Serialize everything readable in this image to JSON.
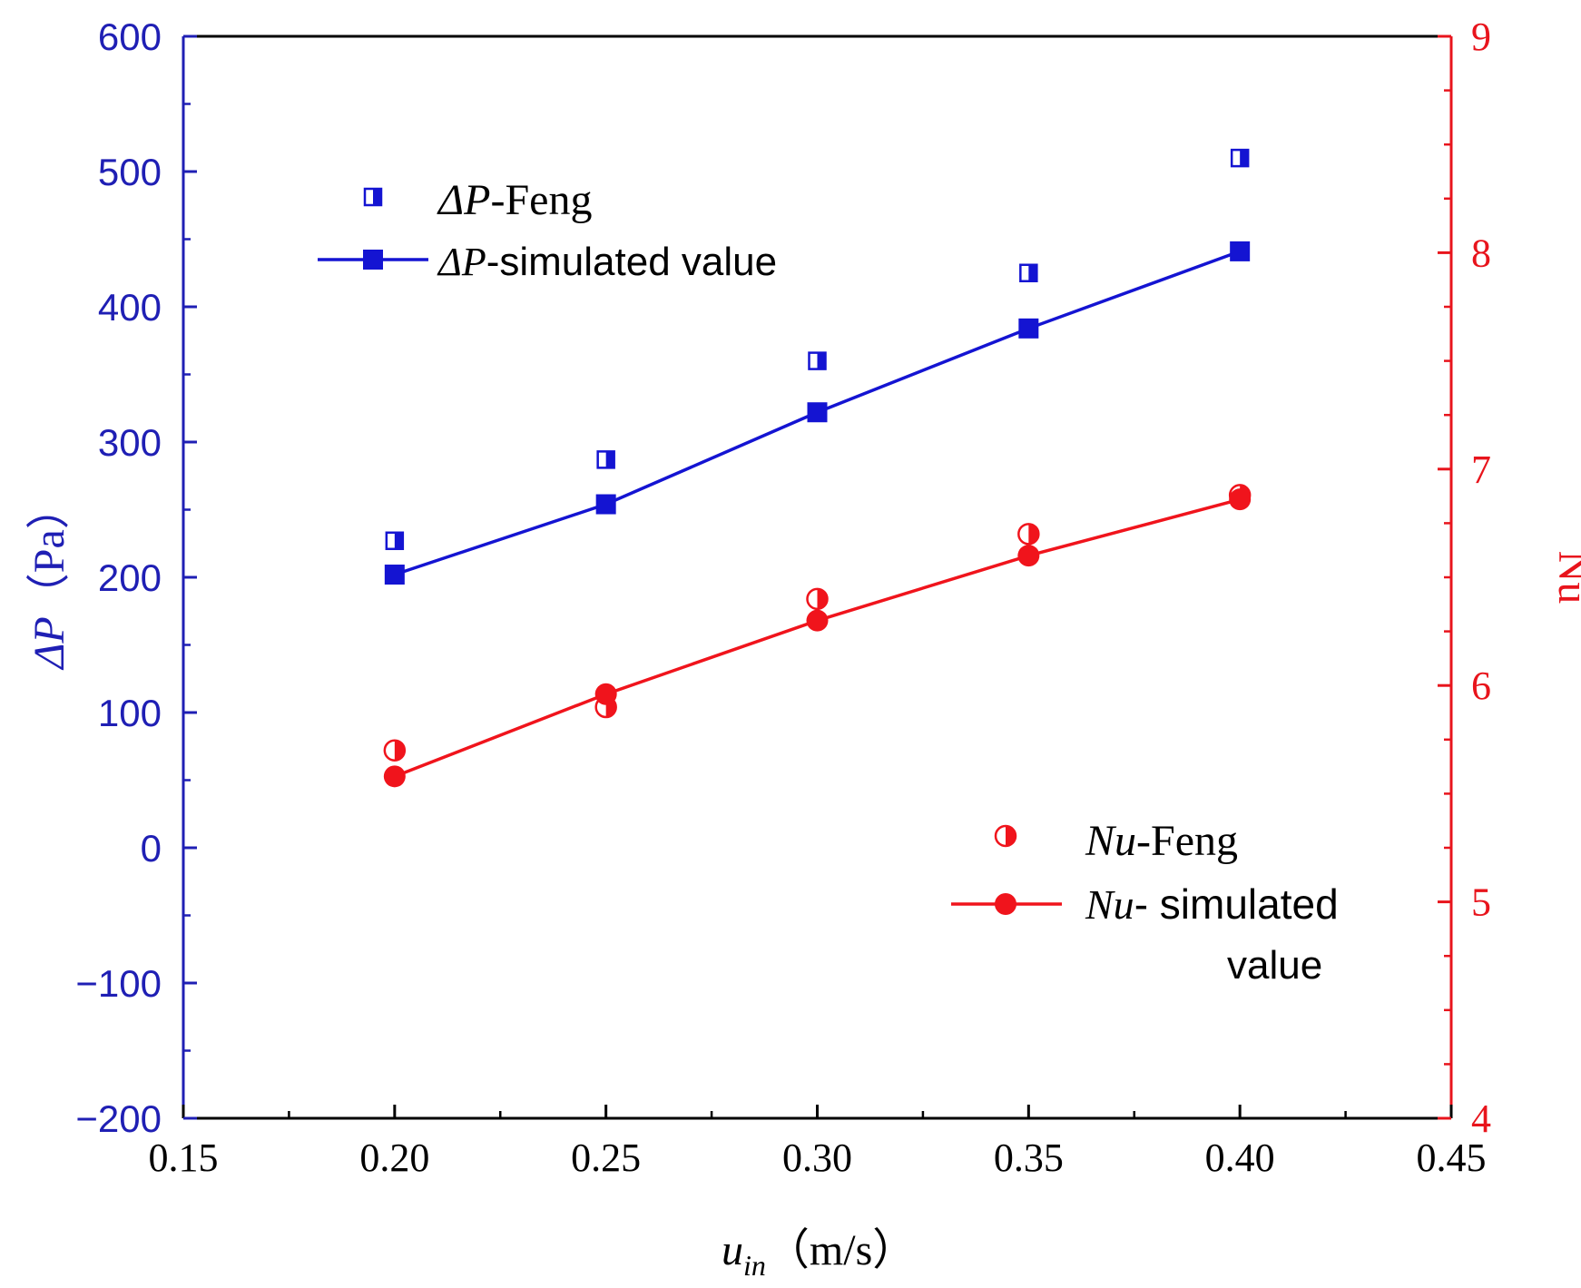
{
  "chart_data": {
    "type": "line",
    "x": [
      0.2,
      0.25,
      0.3,
      0.35,
      0.4
    ],
    "xlim": [
      0.15,
      0.45
    ],
    "xticks": [
      "0.15",
      "0.20",
      "0.25",
      "0.30",
      "0.35",
      "0.40",
      "0.45"
    ],
    "xtick_values": [
      0.15,
      0.2,
      0.25,
      0.3,
      0.35,
      0.4,
      0.45
    ],
    "xlabel": {
      "main": "u",
      "sub": "in",
      "unit": "（m/s）"
    },
    "y_left": {
      "label": {
        "symbol": "ΔP",
        "unit": "（Pa）"
      },
      "lim": [
        -200,
        600
      ],
      "ticks": [
        "−200",
        "−100",
        "0",
        "100",
        "200",
        "300",
        "400",
        "500",
        "600"
      ],
      "tick_values": [
        -200,
        -100,
        0,
        100,
        200,
        300,
        400,
        500,
        600
      ],
      "color": "#1f1fb4"
    },
    "y_right": {
      "label": "Nu",
      "lim": [
        4,
        9
      ],
      "ticks": [
        "4",
        "5",
        "6",
        "7",
        "8",
        "9"
      ],
      "tick_values": [
        4,
        5,
        6,
        7,
        8,
        9
      ],
      "color": "#e8141c"
    },
    "series": [
      {
        "name": "ΔP-Feng",
        "axis": "left",
        "marker": "half-square",
        "line": false,
        "color": "#1414d2",
        "values": [
          227,
          287,
          360,
          425,
          510
        ]
      },
      {
        "name": "ΔP-simulated value",
        "axis": "left",
        "marker": "square",
        "line": true,
        "color": "#1414d2",
        "values": [
          202,
          254,
          322,
          384,
          441
        ]
      },
      {
        "name": "Nu-Feng",
        "axis": "right",
        "marker": "half-circle",
        "line": false,
        "color": "#f0141c",
        "values": [
          5.7,
          5.9,
          6.4,
          6.7,
          6.88
        ]
      },
      {
        "name": "Nu-simulated value",
        "axis": "right",
        "marker": "circle",
        "line": true,
        "color": "#f0141c",
        "values": [
          5.58,
          5.96,
          6.3,
          6.6,
          6.86
        ]
      }
    ],
    "legend": {
      "upper_left": [
        {
          "symbol": "ΔP",
          "rest": "-Feng"
        },
        {
          "symbol": "ΔP",
          "rest": "-simulated value"
        }
      ],
      "lower_right": [
        {
          "symbol": "Nu",
          "rest": "-Feng"
        },
        {
          "symbol": "Nu",
          "rest": "- simulated",
          "rest2": "value"
        }
      ]
    }
  }
}
